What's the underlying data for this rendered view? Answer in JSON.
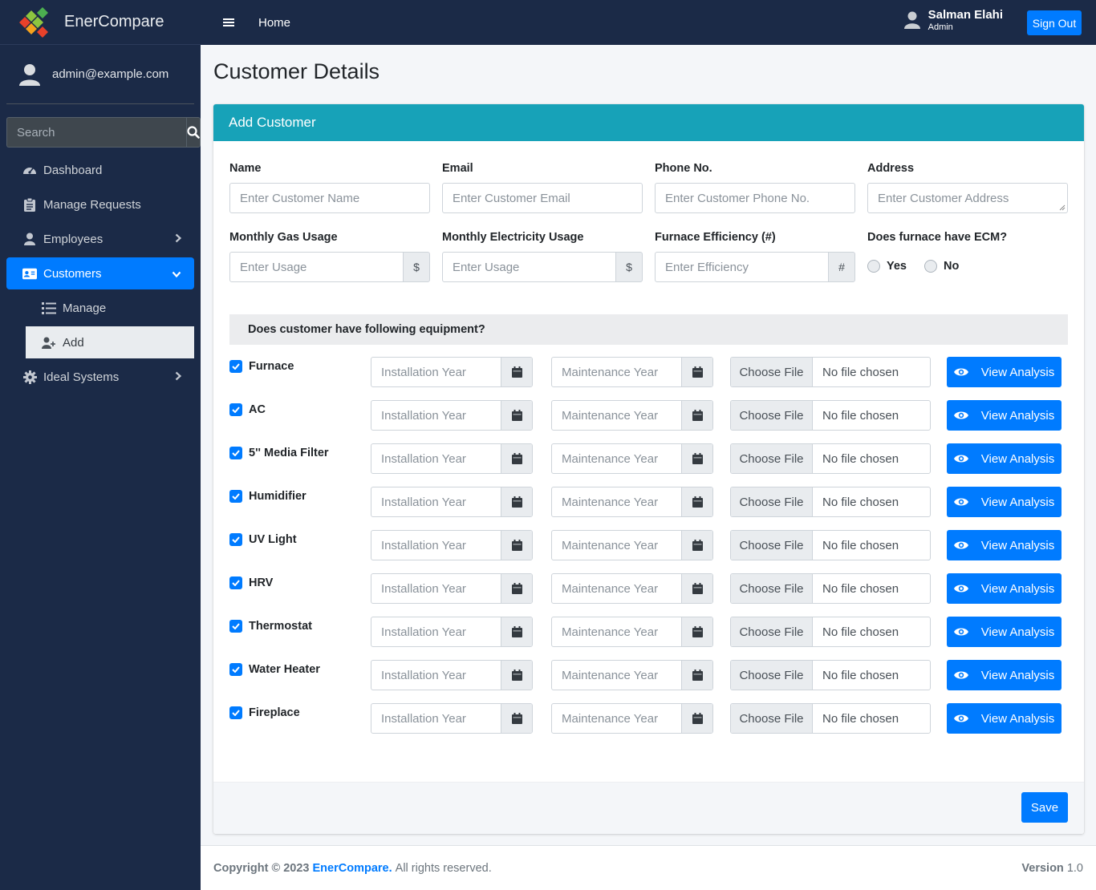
{
  "brand": {
    "name": "EnerCompare"
  },
  "sidebar": {
    "user_email": "admin@example.com",
    "search_placeholder": "Search",
    "items": [
      {
        "label": "Dashboard",
        "icon": "dashboard-icon"
      },
      {
        "label": "Manage Requests",
        "icon": "clipboard-icon"
      },
      {
        "label": "Employees",
        "icon": "user-icon"
      },
      {
        "label": "Customers",
        "icon": "id-card-icon"
      },
      {
        "label": "Manage",
        "icon": "list-icon"
      },
      {
        "label": "Add",
        "icon": "user-plus-icon"
      },
      {
        "label": "Ideal Systems",
        "icon": "gear-icon"
      }
    ]
  },
  "header": {
    "home_label": "Home",
    "user_name": "Salman Elahi",
    "user_role": "Admin",
    "signout_label": "Sign Out"
  },
  "page": {
    "title": "Customer Details"
  },
  "form": {
    "card_title": "Add Customer",
    "name_label": "Name",
    "name_placeholder": "Enter Customer Name",
    "email_label": "Email",
    "email_placeholder": "Enter Customer Email",
    "phone_label": "Phone No.",
    "phone_placeholder": "Enter Customer Phone No.",
    "address_label": "Address",
    "address_placeholder": "Enter Customer Address",
    "gas_label": "Monthly Gas Usage",
    "gas_placeholder": "Enter Usage",
    "gas_addon": "$",
    "elec_label": "Monthly Electricity Usage",
    "elec_placeholder": "Enter Usage",
    "elec_addon": "$",
    "eff_label": "Furnace Efficiency (#)",
    "eff_placeholder": "Enter Efficiency",
    "eff_addon": "#",
    "ecm_label": "Does furnace have ECM?",
    "ecm_yes": "Yes",
    "ecm_no": "No",
    "equipment_question": "Does customer have following equipment?",
    "install_placeholder": "Installation Year",
    "maint_placeholder": "Maintenance Year",
    "choose_file": "Choose File",
    "no_file": "No file chosen",
    "view_analysis": "View Analysis",
    "save_label": "Save",
    "equipment": [
      "Furnace",
      "AC",
      "5'' Media Filter",
      "Humidifier",
      "UV Light",
      "HRV",
      "Thermostat",
      "Water Heater",
      "Fireplace"
    ]
  },
  "footer": {
    "copyright": "Copyright © 2023",
    "brand": "EnerCompare.",
    "rights": "All rights reserved.",
    "version_label": "Version",
    "version": "1.0"
  },
  "colors": {
    "primary": "#007bff",
    "card_header": "#17a2b8",
    "sidebar": "#1b2a47"
  }
}
